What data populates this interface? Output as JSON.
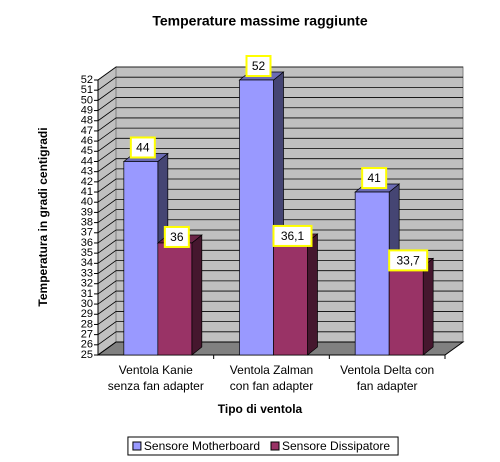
{
  "chart_data": {
    "type": "bar3d",
    "title": "Temperature massime raggiunte",
    "x_label": "Tipo di ventola",
    "y_label": "Temperatura in gradi centigradi",
    "categories": [
      "Ventola Kanie\nsenza fan adapter",
      "Ventola Zalman\ncon fan adapter",
      "Ventola Delta con\nfan adapter"
    ],
    "series": [
      {
        "name": "Sensore Motherboard",
        "color": "#9999ff",
        "values": [
          44,
          52,
          41
        ],
        "value_labels": [
          "44",
          "52",
          "41"
        ]
      },
      {
        "name": "Sensore Dissipatore",
        "color": "#993366",
        "values": [
          36,
          36.1,
          33.7
        ],
        "value_labels": [
          "36",
          "36,1",
          "33,7"
        ]
      }
    ],
    "ylim": [
      25,
      52
    ],
    "yticks": [
      25,
      26,
      27,
      28,
      29,
      30,
      31,
      32,
      33,
      34,
      35,
      36,
      37,
      38,
      39,
      40,
      41,
      42,
      43,
      44,
      45,
      46,
      47,
      48,
      49,
      50,
      51,
      52
    ],
    "grid": true,
    "legend": "bottom"
  }
}
